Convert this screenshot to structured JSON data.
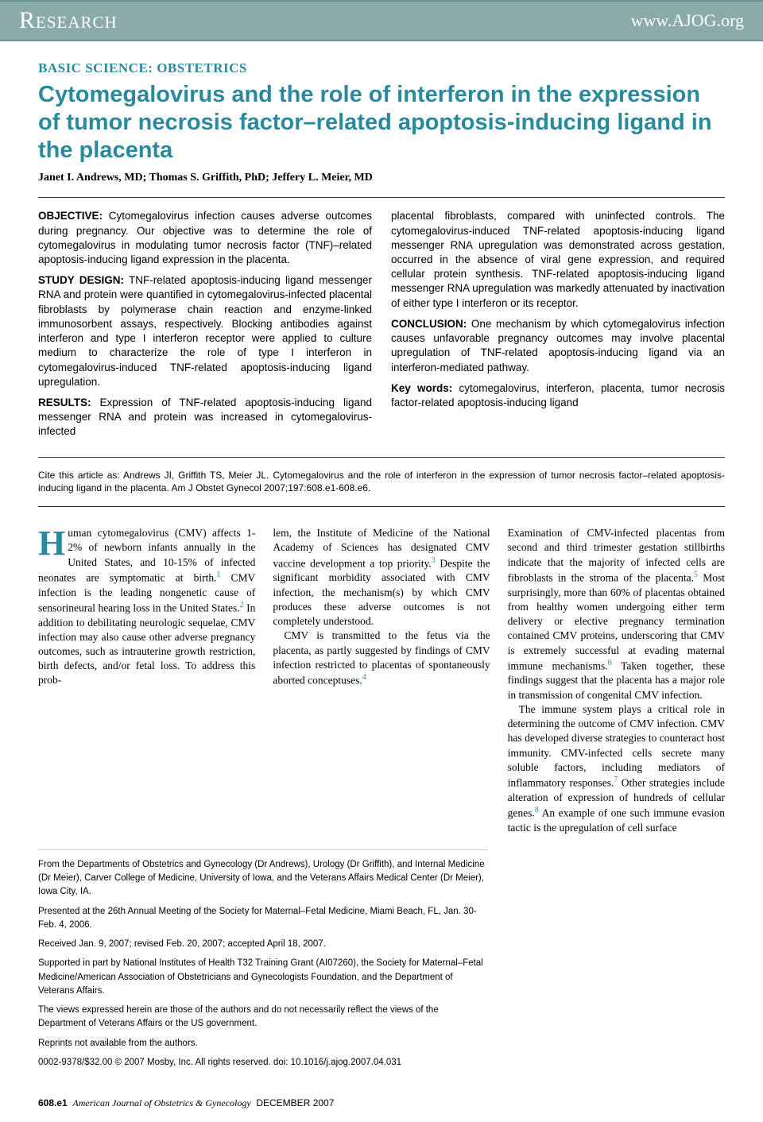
{
  "header": {
    "left": "Research",
    "right": "www.AJOG.org"
  },
  "section_label": "BASIC SCIENCE: OBSTETRICS",
  "title": "Cytomegalovirus and the role of interferon in the expression of tumor necrosis factor–related apoptosis-inducing ligand in the placenta",
  "authors": "Janet I. Andrews, MD; Thomas S. Griffith, PhD; Jeffery L. Meier, MD",
  "abstract": {
    "objective_label": "OBJECTIVE:",
    "objective": " Cytomegalovirus infection causes adverse outcomes during pregnancy. Our objective was to determine the role of cytomegalovirus in modulating tumor necrosis factor (TNF)–related apoptosis-inducing ligand expression in the placenta.",
    "design_label": "STUDY DESIGN:",
    "design": " TNF-related apoptosis-inducing ligand messenger RNA and protein were quantified in cytomegalovirus-infected placental fibroblasts by polymerase chain reaction and enzyme-linked immunosorbent assays, respectively. Blocking antibodies against interferon and type I interferon receptor were applied to culture medium to characterize the role of type I interferon in cytomegalovirus-induced TNF-related apoptosis-inducing ligand upregulation.",
    "results_label": "RESULTS:",
    "results_left": " Expression of TNF-related apoptosis-inducing ligand messenger RNA and protein was increased in cytomegalovirus-infected",
    "results_right": "placental fibroblasts, compared with uninfected controls. The cytomegalovirus-induced TNF-related apoptosis-inducing ligand messenger RNA upregulation was demonstrated across gestation, occurred in the absence of viral gene expression, and required cellular protein synthesis. TNF-related apoptosis-inducing ligand messenger RNA upregulation was markedly attenuated by inactivation of either type I interferon or its receptor.",
    "conclusion_label": "CONCLUSION:",
    "conclusion": " One mechanism by which cytomegalovirus infection causes unfavorable pregnancy outcomes may involve placental upregulation of TNF-related apoptosis-inducing ligand via an interferon-mediated pathway.",
    "keywords_label": "Key words:",
    "keywords": " cytomegalovirus, interferon, placenta, tumor necrosis factor-related apoptosis-inducing ligand"
  },
  "citation": "Cite this article as: Andrews JI, Griffith TS, Meier JL. Cytomegalovirus and the role of interferon in the expression of tumor necrosis factor–related apoptosis-inducing ligand in the placenta. Am J Obstet Gynecol 2007;197:608.e1-608.e6.",
  "body": {
    "col1_p1_start": "uman cytomegalovirus (CMV) affects 1-2% of newborn infants annually in the United States, and 10-15% of infected neonates are symptomatic at birth.",
    "col1_p1_cont": " CMV infection is the leading nongenetic cause of sensorineural hearing loss in the United States.",
    "col1_p1_end": " In addition to debilitating neurologic sequelae, CMV infection may also cause other adverse pregnancy outcomes, such as intrauterine growth restriction, birth defects, and/or fetal loss. To address this prob-",
    "col2_p1": "lem, the Institute of Medicine of the National Academy of Sciences has designated CMV vaccine development a top priority.",
    "col2_p1_end": " Despite the significant morbidity associated with CMV infection, the mechanism(s) by which CMV produces these adverse outcomes is not completely understood.",
    "col2_p2": "CMV is transmitted to the fetus via the placenta, as partly suggested by findings of CMV infection restricted to placentas of spontaneously aborted conceptuses.",
    "col3_p1": "Examination of CMV-infected placentas from second and third trimester gestation stillbirths indicate that the majority of infected cells are fibroblasts in the stroma of the placenta.",
    "col3_p1_cont": " Most surprisingly, more than 60% of placentas obtained from healthy women undergoing either term delivery or elective pregnancy termination contained CMV proteins, underscoring that CMV is extremely successful at evading maternal immune mechanisms.",
    "col3_p1_end": " Taken together, these findings suggest that the placenta has a major role in transmission of congenital CMV infection.",
    "col3_p2": "The immune system plays a critical role in determining the outcome of CMV infection. CMV has developed diverse strategies to counteract host immunity. CMV-infected cells secrete many soluble factors, including mediators of inflammatory responses.",
    "col3_p2_cont": " Other strategies include alteration of expression of hundreds of cellular genes.",
    "col3_p2_end": " An example of one such immune evasion tactic is the upregulation of cell surface"
  },
  "footnotes": {
    "f1": "From the Departments of Obstetrics and Gynecology (Dr Andrews), Urology (Dr Griffith), and Internal Medicine (Dr Meier), Carver College of Medicine, University of Iowa, and the Veterans Affairs Medical Center (Dr Meier), Iowa City, IA.",
    "f2": "Presented at the 26th Annual Meeting of the Society for Maternal–Fetal Medicine, Miami Beach, FL, Jan. 30-Feb. 4, 2006.",
    "f3": "Received Jan. 9, 2007; revised Feb. 20, 2007; accepted April 18, 2007.",
    "f4": "Supported in part by National Institutes of Health T32 Training Grant (AI07260), the Society for Maternal–Fetal Medicine/American Association of Obstetricians and Gynecologists Foundation, and the Department of Veterans Affairs.",
    "f5": "The views expressed herein are those of the authors and do not necessarily reflect the views of the Department of Veterans Affairs or the US government.",
    "f6": "Reprints not available from the authors.",
    "f7": "0002-9378/$32.00 © 2007 Mosby, Inc. All rights reserved. doi: 10.1016/j.ajog.2007.04.031"
  },
  "footer": {
    "page": "608.e1",
    "journal": "American Journal of Obstetrics & Gynecology",
    "date": "DECEMBER 2007"
  },
  "colors": {
    "header_bg": "#8aaba8",
    "accent": "#2a8a9d",
    "text": "#000000",
    "divider": "#333333"
  }
}
